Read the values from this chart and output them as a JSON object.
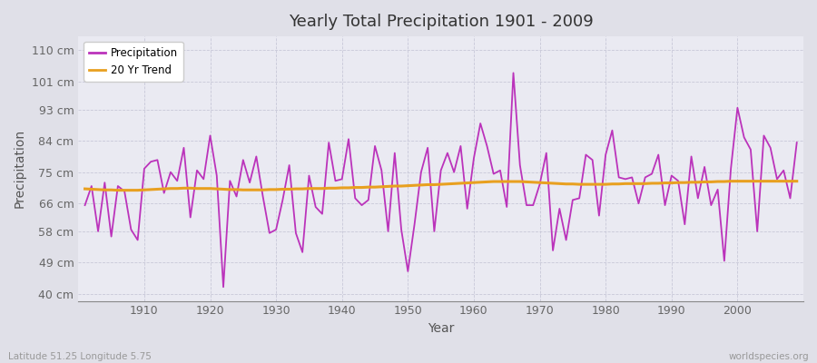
{
  "title": "Yearly Total Precipitation 1901 - 2009",
  "xlabel": "Year",
  "ylabel": "Precipitation",
  "lat_lon_label": "Latitude 51.25 Longitude 5.75",
  "watermark": "worldspecies.org",
  "precip_color": "#BB33BB",
  "trend_color": "#E8A020",
  "background_color": "#E0E0E8",
  "plot_bg_color": "#EAEAF2",
  "grid_color": "#C8C8D8",
  "years": [
    1901,
    1902,
    1903,
    1904,
    1905,
    1906,
    1907,
    1908,
    1909,
    1910,
    1911,
    1912,
    1913,
    1914,
    1915,
    1916,
    1917,
    1918,
    1919,
    1920,
    1921,
    1922,
    1923,
    1924,
    1925,
    1926,
    1927,
    1928,
    1929,
    1930,
    1931,
    1932,
    1933,
    1934,
    1935,
    1936,
    1937,
    1938,
    1939,
    1940,
    1941,
    1942,
    1943,
    1944,
    1945,
    1946,
    1947,
    1948,
    1949,
    1950,
    1951,
    1952,
    1953,
    1954,
    1955,
    1956,
    1957,
    1958,
    1959,
    1960,
    1961,
    1962,
    1963,
    1964,
    1965,
    1966,
    1967,
    1968,
    1969,
    1970,
    1971,
    1972,
    1973,
    1974,
    1975,
    1976,
    1977,
    1978,
    1979,
    1980,
    1981,
    1982,
    1983,
    1984,
    1985,
    1986,
    1987,
    1988,
    1989,
    1990,
    1991,
    1992,
    1993,
    1994,
    1995,
    1996,
    1997,
    1998,
    1999,
    2000,
    2001,
    2002,
    2003,
    2004,
    2005,
    2006,
    2007,
    2008,
    2009
  ],
  "precip": [
    65.5,
    71.0,
    58.0,
    72.0,
    56.5,
    71.0,
    69.5,
    58.5,
    55.5,
    76.0,
    78.0,
    78.5,
    69.0,
    75.0,
    72.5,
    82.0,
    62.0,
    75.5,
    73.0,
    85.5,
    74.0,
    42.0,
    72.5,
    68.0,
    78.5,
    72.0,
    79.5,
    68.0,
    57.5,
    58.5,
    67.0,
    77.0,
    57.5,
    52.0,
    74.0,
    65.0,
    63.0,
    83.5,
    72.5,
    73.0,
    84.5,
    67.5,
    65.5,
    67.0,
    82.5,
    75.5,
    58.0,
    80.5,
    58.5,
    46.5,
    60.0,
    75.0,
    82.0,
    58.0,
    75.5,
    80.5,
    75.0,
    82.5,
    64.5,
    79.0,
    89.0,
    82.5,
    74.5,
    75.5,
    65.0,
    103.5,
    77.0,
    65.5,
    65.5,
    71.5,
    80.5,
    52.5,
    64.5,
    55.5,
    67.0,
    67.5,
    80.0,
    78.5,
    62.5,
    80.0,
    87.0,
    73.5,
    73.0,
    73.5,
    66.0,
    73.5,
    74.5,
    80.0,
    65.5,
    74.0,
    72.5,
    60.0,
    79.5,
    67.5,
    76.5,
    65.5,
    70.0,
    49.5,
    76.0,
    93.5,
    85.0,
    81.5,
    58.0,
    85.5,
    82.0,
    73.0,
    75.5,
    67.5,
    83.5
  ],
  "trend": [
    70.2,
    70.1,
    70.0,
    69.9,
    69.9,
    69.8,
    69.8,
    69.8,
    69.8,
    69.9,
    70.0,
    70.1,
    70.2,
    70.3,
    70.3,
    70.4,
    70.4,
    70.3,
    70.3,
    70.3,
    70.2,
    70.1,
    70.0,
    70.0,
    69.9,
    69.9,
    69.9,
    69.9,
    70.0,
    70.0,
    70.1,
    70.1,
    70.2,
    70.2,
    70.3,
    70.3,
    70.3,
    70.4,
    70.4,
    70.5,
    70.5,
    70.6,
    70.6,
    70.7,
    70.7,
    70.8,
    70.9,
    71.0,
    71.0,
    71.1,
    71.2,
    71.3,
    71.4,
    71.4,
    71.5,
    71.6,
    71.7,
    71.8,
    71.9,
    72.0,
    72.1,
    72.2,
    72.3,
    72.3,
    72.3,
    72.3,
    72.3,
    72.2,
    72.1,
    72.0,
    71.9,
    71.8,
    71.7,
    71.6,
    71.6,
    71.5,
    71.5,
    71.5,
    71.5,
    71.5,
    71.6,
    71.6,
    71.7,
    71.7,
    71.7,
    71.7,
    71.8,
    71.8,
    71.9,
    71.9,
    72.0,
    72.0,
    72.1,
    72.1,
    72.2,
    72.2,
    72.3,
    72.3,
    72.4,
    72.4,
    72.4,
    72.4,
    72.4,
    72.4,
    72.4,
    72.4,
    72.4,
    72.4,
    72.4
  ],
  "yticks": [
    40,
    49,
    58,
    66,
    75,
    84,
    93,
    101,
    110
  ],
  "ylim": [
    38,
    114
  ],
  "xlim": [
    1900,
    2010
  ],
  "xticks": [
    1910,
    1920,
    1930,
    1940,
    1950,
    1960,
    1970,
    1980,
    1990,
    2000
  ]
}
